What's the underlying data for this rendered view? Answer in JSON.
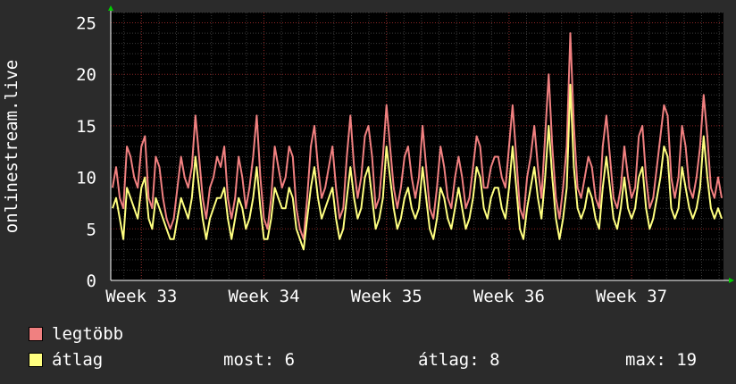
{
  "chart_data": {
    "type": "line",
    "ylabel": "onlinestream.live",
    "xlabel": "",
    "title": "",
    "ylim": [
      0,
      26
    ],
    "y_ticks": [
      "0",
      "5",
      "10",
      "15",
      "20",
      "25"
    ],
    "x_ticks": [
      "Week 33",
      "Week 34",
      "Week 35",
      "Week 36",
      "Week 37"
    ],
    "grid": true,
    "background": "#000000",
    "series": [
      {
        "name": "legtöbb",
        "color": "#f08080",
        "values": [
          9,
          11,
          8,
          7,
          13,
          12,
          10,
          9,
          13,
          14,
          8,
          7,
          12,
          11,
          8,
          6,
          5,
          6,
          9,
          12,
          10,
          9,
          11,
          16,
          12,
          8,
          6,
          9,
          10,
          12,
          11,
          13,
          8,
          6,
          8,
          12,
          10,
          7,
          9,
          12,
          16,
          10,
          6,
          5,
          8,
          13,
          11,
          9,
          10,
          13,
          12,
          7,
          5,
          4,
          8,
          13,
          15,
          11,
          8,
          9,
          11,
          13,
          9,
          6,
          7,
          12,
          16,
          11,
          8,
          10,
          14,
          15,
          12,
          7,
          8,
          12,
          17,
          13,
          9,
          7,
          9,
          12,
          13,
          10,
          8,
          10,
          15,
          11,
          7,
          6,
          9,
          13,
          11,
          8,
          7,
          10,
          12,
          10,
          7,
          8,
          11,
          14,
          13,
          9,
          9,
          11,
          12,
          12,
          10,
          9,
          13,
          17,
          12,
          7,
          6,
          10,
          12,
          15,
          11,
          8,
          14,
          20,
          13,
          8,
          6,
          9,
          13,
          24,
          15,
          9,
          8,
          10,
          12,
          11,
          8,
          7,
          13,
          16,
          12,
          8,
          7,
          9,
          13,
          10,
          8,
          9,
          14,
          15,
          10,
          7,
          8,
          11,
          14,
          17,
          16,
          10,
          8,
          10,
          15,
          13,
          9,
          8,
          10,
          13,
          18,
          14,
          9,
          8,
          10,
          8
        ]
      },
      {
        "name": "átlag",
        "color": "#ffff80",
        "values": [
          7,
          8,
          6,
          4,
          9,
          8,
          7,
          6,
          9,
          10,
          6,
          5,
          8,
          7,
          6,
          5,
          4,
          4,
          6,
          8,
          7,
          6,
          8,
          12,
          9,
          6,
          4,
          6,
          7,
          8,
          8,
          9,
          6,
          4,
          6,
          8,
          7,
          5,
          6,
          8,
          11,
          7,
          4,
          4,
          6,
          9,
          8,
          7,
          7,
          9,
          8,
          5,
          4,
          3,
          6,
          9,
          11,
          8,
          6,
          7,
          8,
          9,
          6,
          4,
          5,
          8,
          11,
          8,
          6,
          7,
          10,
          11,
          8,
          5,
          6,
          8,
          13,
          10,
          7,
          5,
          6,
          8,
          9,
          7,
          6,
          7,
          11,
          8,
          5,
          4,
          6,
          9,
          8,
          6,
          5,
          7,
          9,
          7,
          5,
          6,
          8,
          11,
          10,
          7,
          6,
          8,
          9,
          9,
          7,
          6,
          9,
          13,
          9,
          5,
          4,
          7,
          9,
          11,
          8,
          6,
          10,
          15,
          10,
          6,
          4,
          6,
          9,
          19,
          11,
          7,
          6,
          7,
          9,
          8,
          6,
          5,
          9,
          12,
          9,
          6,
          5,
          7,
          10,
          7,
          6,
          7,
          10,
          11,
          7,
          5,
          6,
          8,
          10,
          13,
          12,
          7,
          6,
          7,
          11,
          9,
          7,
          6,
          7,
          9,
          14,
          10,
          7,
          6,
          7,
          6
        ]
      }
    ],
    "legend_position": "bottom-left"
  },
  "legend": {
    "max_label": "legtöbb",
    "avg_label": "átlag",
    "max_color": "#f08080",
    "avg_color": "#ffff80"
  },
  "stats": {
    "now": "most: 6",
    "avg": "átlag: 8",
    "max": "max: 19"
  }
}
